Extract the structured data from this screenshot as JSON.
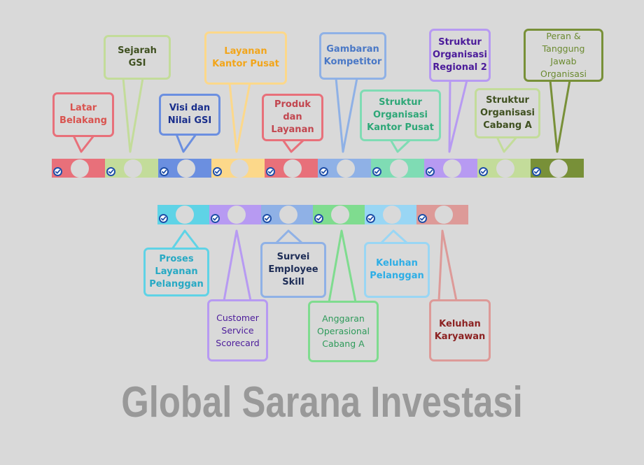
{
  "title": "Global Sarana Investasi",
  "colors": {
    "background": "#d9d9d9",
    "check": "#1f4fa8",
    "title": "#999999"
  },
  "top_timeline": [
    {
      "id": "latar-belakang",
      "label": "Latar\nBelakang",
      "color": "#e8707a",
      "text_color": "#d9534f",
      "weight": "bold"
    },
    {
      "id": "sejarah-gsi",
      "label": "Sejarah GSI",
      "color": "#c3dc9a",
      "text_color": "#3f5020",
      "weight": "bold"
    },
    {
      "id": "visi-dan-nilai-gsi",
      "label": "Visi dan\nNilai GSI",
      "color": "#6b8fe0",
      "text_color": "#1a2f8c",
      "weight": "bold"
    },
    {
      "id": "layanan-kantor-pusat",
      "label": "Layanan\nKantor Pusat",
      "color": "#fcd88a",
      "text_color": "#f2a51a",
      "weight": "bold"
    },
    {
      "id": "produk-dan-layanan",
      "label": "Produk\ndan\nLayanan",
      "color": "#e8707a",
      "text_color": "#c2464f",
      "weight": "bold"
    },
    {
      "id": "gambaran-kompetitor",
      "label": "Gambaran\nKompetitor",
      "color": "#8fb1e6",
      "text_color": "#4a78c6",
      "weight": "bold"
    },
    {
      "id": "struktur-organisasi-kantor-pusat",
      "label": "Struktur\nOrganisasi\nKantor Pusat",
      "color": "#7fdcb4",
      "text_color": "#2ea777",
      "weight": "bold"
    },
    {
      "id": "struktur-organisasi-regional-2",
      "label": "Struktur\nOrganisasi\nRegional 2",
      "color": "#b79af2",
      "text_color": "#4b1b9a",
      "weight": "bold"
    },
    {
      "id": "struktur-organisasi-cabang-a",
      "label": "Struktur\nOrganisasi\nCabang A",
      "color": "#c3dc9a",
      "text_color": "#3f5020",
      "weight": "bold"
    },
    {
      "id": "peran-dan-tanggung-jawab",
      "label": "Peran &\nTanggung Jawab\nOrganisasi",
      "color": "#789038",
      "text_color": "#6b8a30",
      "weight": "regular"
    }
  ],
  "bottom_timeline": [
    {
      "id": "proses-layanan-pelanggan",
      "label": "Proses\nLayanan\nPelanggan",
      "color": "#5fd3e6",
      "text_color": "#27a9c4",
      "weight": "bold"
    },
    {
      "id": "customer-service-scorecard",
      "label": "Customer\nService\nScorecard",
      "color": "#b79af2",
      "text_color": "#4b1b9a",
      "weight": "regular"
    },
    {
      "id": "survei-employee-skill",
      "label": "Survei\nEmployee\nSkill",
      "color": "#8fb1e6",
      "text_color": "#1e2d56",
      "weight": "bold"
    },
    {
      "id": "anggaran-operasional-cabang-a",
      "label": "Anggaran\nOperasional\nCabang A",
      "color": "#7fdc8f",
      "text_color": "#2e9a5a",
      "weight": "regular"
    },
    {
      "id": "keluhan-pelanggan",
      "label": "Keluhan\nPelanggan",
      "color": "#99d6f4",
      "text_color": "#2eaee6",
      "weight": "bold"
    },
    {
      "id": "keluhan-karyawan",
      "label": "Keluhan\nKaryawan",
      "color": "#dd9a98",
      "text_color": "#8c2222",
      "weight": "bold"
    }
  ]
}
